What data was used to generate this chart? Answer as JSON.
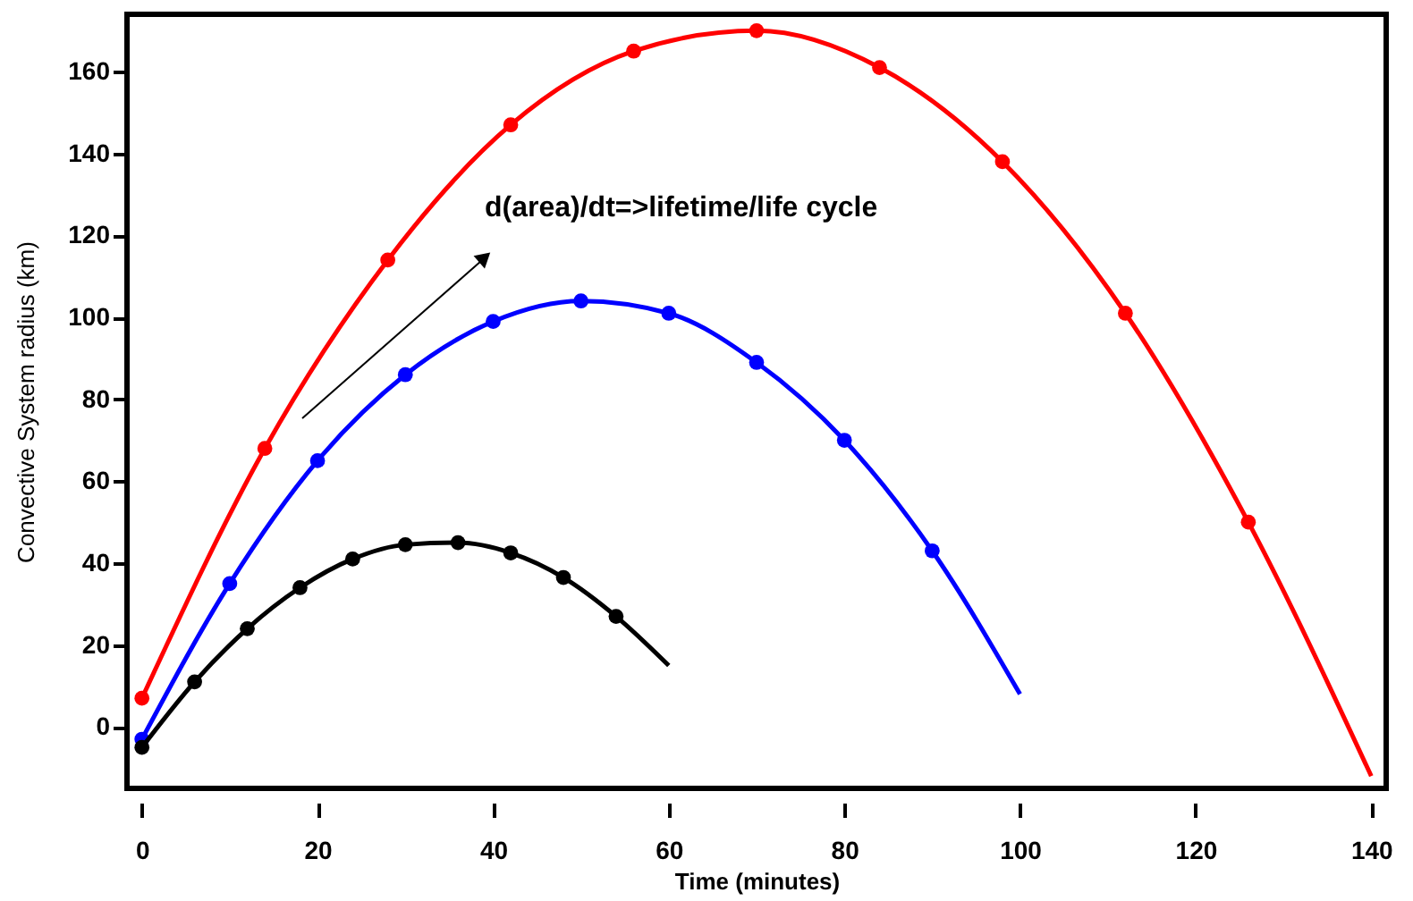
{
  "chart_data": {
    "type": "line",
    "xlabel": "Time (minutes)",
    "ylabel": "Convective System radius (km)",
    "xlim": [
      -1.7,
      141.7
    ],
    "ylim": [
      -15,
      174
    ],
    "xticks": [
      0,
      20,
      40,
      60,
      80,
      100,
      120,
      140
    ],
    "yticks": [
      0,
      20,
      40,
      60,
      80,
      100,
      120,
      140,
      160
    ],
    "grid": false,
    "line_style": "solid",
    "annotations": [
      "d(area)/dt=>lifetime/life cycle"
    ],
    "series": [
      {
        "color": "#ff0000",
        "marker": "none",
        "x": [
          0,
          14,
          28,
          42,
          56,
          70,
          84,
          98,
          112,
          126,
          140
        ],
        "values": [
          7,
          68,
          114,
          147,
          165,
          170,
          161,
          138,
          101,
          50,
          -12
        ]
      },
      {
        "type": "scatter",
        "color": "#ff0000",
        "marker": "circle",
        "x": [
          0,
          14,
          28,
          42,
          56,
          70,
          84,
          98,
          112,
          126
        ],
        "values": [
          7,
          68,
          114,
          147,
          165,
          170,
          161,
          138,
          101,
          50
        ]
      },
      {
        "color": "#0000ff",
        "marker": "none",
        "x": [
          0,
          10,
          20,
          30,
          40,
          50,
          60,
          70,
          80,
          90,
          100
        ],
        "values": [
          -3,
          35,
          65,
          86,
          99,
          104,
          101,
          89,
          70,
          43,
          8
        ]
      },
      {
        "type": "scatter",
        "color": "#0000ff",
        "marker": "circle",
        "x": [
          0,
          10,
          20,
          30,
          40,
          50,
          60,
          70,
          80,
          90
        ],
        "values": [
          -3,
          35,
          65,
          86,
          99,
          104,
          101,
          89,
          70,
          43
        ]
      },
      {
        "color": "#000000",
        "marker": "none",
        "x": [
          0,
          6,
          12,
          18,
          24,
          30,
          36,
          42,
          48,
          54,
          60
        ],
        "values": [
          -5,
          11,
          24,
          34,
          41,
          44.5,
          45,
          42.5,
          36.5,
          27,
          15
        ]
      },
      {
        "type": "scatter",
        "color": "#000000",
        "marker": "circle",
        "x": [
          0,
          6,
          12,
          18,
          24,
          30,
          36,
          42,
          48,
          54
        ],
        "values": [
          -5,
          11,
          24,
          34,
          41,
          44.5,
          45,
          42.5,
          36.5,
          27
        ]
      }
    ]
  }
}
